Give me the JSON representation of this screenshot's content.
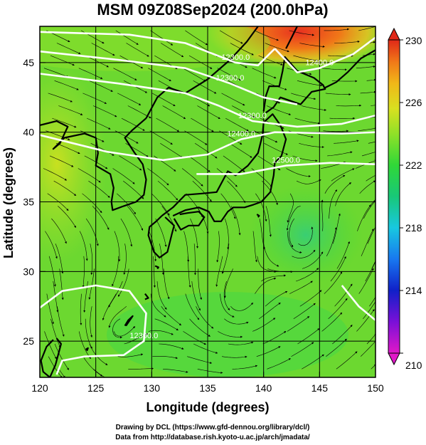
{
  "title": "MSM 09Z08Sep2024 (200.0hPa)",
  "xlabel": "Longitude (degrees)",
  "ylabel": "Latitude  (degrees)",
  "credits": [
    "Drawing by DCL (https://www.gfd-dennou.org/library/dcl/)",
    "Data from http://database.rish.kyoto-u.ac.jp/arch/jmadata/"
  ],
  "map": {
    "lon_range": [
      120,
      150
    ],
    "lat_range": [
      22.4,
      47.6
    ],
    "lon_ticks": [
      120,
      125,
      130,
      135,
      140,
      145,
      150
    ],
    "lat_ticks": [
      25,
      30,
      35,
      40,
      45
    ],
    "grid": true
  },
  "colorbar": {
    "range": [
      210,
      230
    ],
    "tick_values": [
      210,
      214,
      218,
      222,
      226,
      230
    ],
    "tick_labels": [
      "210",
      "214",
      "218",
      "222",
      "226",
      "230"
    ],
    "colors": [
      "#e018c8",
      "#7a10d8",
      "#1020c8",
      "#1878f0",
      "#18c8e0",
      "#18c878",
      "#30d838",
      "#90e028",
      "#d8e020",
      "#f0b818",
      "#f07818",
      "#e02818"
    ]
  },
  "contour_labels": [
    "12300.0",
    "12300.0",
    "12300.0",
    "12400.0",
    "12500.0",
    "12300.0",
    "12400.0",
    "12300.0"
  ],
  "chart_data": {
    "type": "heatmap",
    "title": "MSM 09Z08Sep2024 (200.0hPa)",
    "xlabel": "Longitude (degrees)",
    "ylabel": "Latitude  (degrees)",
    "xlim": [
      120,
      150
    ],
    "ylim": [
      22.4,
      47.6
    ],
    "colorbar_range": [
      210,
      230
    ],
    "field": "temperature at 200.0hPa",
    "overlays": [
      "geopotential height contours",
      "wind streamlines"
    ],
    "contour_lines": [
      {
        "label": "12300.0",
        "points": [
          [
            120,
            47.2
          ],
          [
            128,
            47.0
          ],
          [
            133,
            46.4
          ],
          [
            137.5,
            45.0
          ],
          [
            139.5,
            44.8
          ],
          [
            141,
            46.0
          ]
        ]
      },
      {
        "label": "12300.0",
        "points": [
          [
            120,
            45.8
          ],
          [
            127,
            45.2
          ],
          [
            133,
            44.6
          ],
          [
            137,
            43.5
          ],
          [
            140,
            42.5
          ],
          [
            143,
            42.0
          ]
        ]
      },
      {
        "label": "12300.0",
        "points": [
          [
            120,
            44.2
          ],
          [
            127,
            43.5
          ],
          [
            133,
            42.8
          ],
          [
            136,
            41.9
          ],
          [
            139,
            40.8
          ],
          [
            143,
            40.4
          ],
          [
            147,
            40.6
          ],
          [
            150,
            41.2
          ]
        ]
      },
      {
        "label": "12400.0",
        "points": [
          [
            120,
            39.8
          ],
          [
            126,
            38.6
          ],
          [
            131,
            38.0
          ],
          [
            135,
            38.4
          ],
          [
            138,
            39.5
          ],
          [
            141,
            40.0
          ],
          [
            147,
            39.9
          ],
          [
            150,
            40.0
          ]
        ]
      },
      {
        "label": "12500.0",
        "points": [
          [
            134,
            37.0
          ],
          [
            138,
            37.0
          ],
          [
            142,
            37.6
          ],
          [
            146,
            37.8
          ],
          [
            150,
            37.7
          ]
        ]
      },
      {
        "label": "12400.0",
        "points": [
          [
            141,
            46.0
          ],
          [
            143,
            44.3
          ],
          [
            145,
            44.6
          ],
          [
            148,
            45.6
          ],
          [
            150,
            46.8
          ]
        ]
      },
      {
        "label": "12300.0",
        "points": [
          [
            120,
            27.4
          ],
          [
            122,
            28.6
          ],
          [
            125,
            29.0
          ],
          [
            128,
            28.6
          ],
          [
            129.5,
            27.0
          ],
          [
            129.3,
            25.0
          ],
          [
            127.5,
            24.0
          ],
          [
            124,
            23.9
          ],
          [
            122,
            23.6
          ],
          [
            121.5,
            22.6
          ]
        ]
      },
      {
        "label": "",
        "points": [
          [
            147,
            29.0
          ],
          [
            148.5,
            27.5
          ],
          [
            150,
            26.5
          ]
        ]
      }
    ],
    "cyclonic_centers": [
      {
        "lon": 143.8,
        "lat": 32.2
      },
      {
        "lon": 126.3,
        "lat": 25.3
      },
      {
        "lon": 137.5,
        "lat": 27.5
      }
    ]
  }
}
